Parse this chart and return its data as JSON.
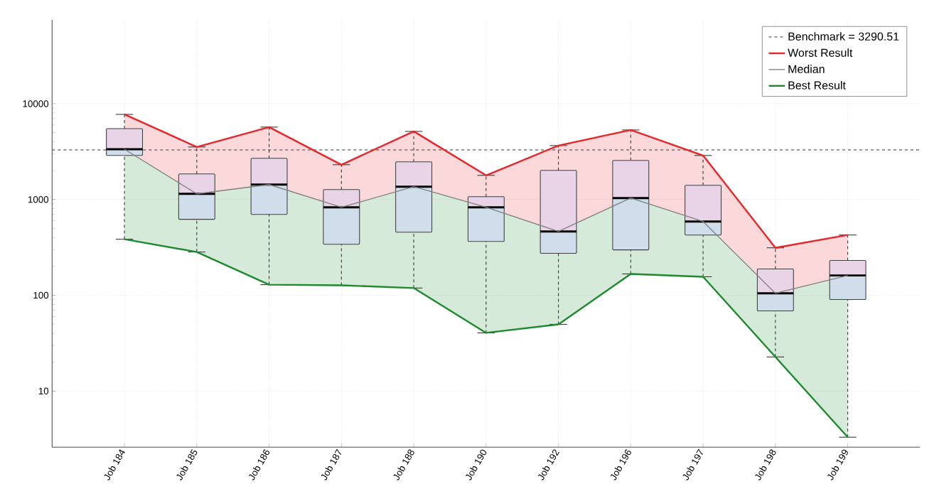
{
  "chart_data": {
    "type": "box",
    "categories": [
      "Job 184",
      "Job 185",
      "Job 186",
      "Job 187",
      "Job 188",
      "Job 190",
      "Job 192",
      "Job 196",
      "Job 197",
      "Job 198",
      "Job 199"
    ],
    "boxes": [
      {
        "low": 385,
        "q1": 2880,
        "median": 3350,
        "q3": 5500,
        "high": 7740
      },
      {
        "low": 283,
        "q1": 621,
        "median": 1146,
        "q3": 1848,
        "high": 3535
      },
      {
        "low": 129,
        "q1": 699,
        "median": 1431,
        "q3": 2690,
        "high": 5700
      },
      {
        "low": 127,
        "q1": 341,
        "median": 829,
        "q3": 1270,
        "high": 2306
      },
      {
        "low": 119,
        "q1": 456,
        "median": 1360,
        "q3": 2470,
        "high": 5140
      },
      {
        "low": 40.5,
        "q1": 365,
        "median": 829,
        "q3": 1071,
        "high": 1786
      },
      {
        "low": 49.7,
        "q1": 274,
        "median": 464,
        "q3": 2013,
        "high": 3656
      },
      {
        "low": 167,
        "q1": 298,
        "median": 1035,
        "q3": 2555,
        "high": 5320
      },
      {
        "low": 156,
        "q1": 426,
        "median": 589,
        "q3": 1406,
        "high": 2880
      },
      {
        "low": 22.7,
        "q1": 68.7,
        "median": 105,
        "q3": 188,
        "high": 313
      },
      {
        "low": 3.3,
        "q1": 90.3,
        "median": 161,
        "q3": 231,
        "high": 426
      }
    ],
    "series": [
      {
        "name": "Worst Result",
        "type": "line",
        "color": "#e8262a",
        "values": [
          7740,
          3535,
          5700,
          2306,
          5140,
          1786,
          3656,
          5320,
          2880,
          313,
          426
        ],
        "lower": [
          3350,
          1146,
          1431,
          829,
          1360,
          829,
          464,
          1035,
          589,
          105,
          161
        ],
        "upper": [
          7740,
          3535,
          5700,
          2306,
          5140,
          1786,
          3656,
          5320,
          2880,
          313,
          426
        ]
      },
      {
        "name": "Median",
        "type": "line",
        "color": "#808080",
        "values": [
          3350,
          1146,
          1431,
          829,
          1360,
          829,
          464,
          1035,
          589,
          105,
          161
        ]
      },
      {
        "name": "Best Result",
        "type": "line",
        "color": "#1e8a2e",
        "values": [
          385,
          283,
          129,
          127,
          119,
          40.5,
          49.7,
          167,
          156,
          22.7,
          3.3
        ],
        "lower": [
          385,
          283,
          129,
          127,
          119,
          40.5,
          49.7,
          167,
          156,
          22.7,
          3.3
        ],
        "upper": [
          3350,
          1146,
          1431,
          829,
          1360,
          829,
          464,
          1035,
          589,
          105,
          161
        ]
      }
    ],
    "ref_lines": [
      {
        "axis": "y",
        "value": 3290.51,
        "label": "Benchmark = 3290.51",
        "color": "#333333",
        "line_style": "dashed"
      }
    ],
    "log": "y",
    "ylim": [
      2.6,
      75000
    ],
    "yticks": [
      10,
      100,
      1000,
      10000
    ],
    "grid": true,
    "legend": "top right",
    "marker": "none",
    "line_style": "solid"
  }
}
